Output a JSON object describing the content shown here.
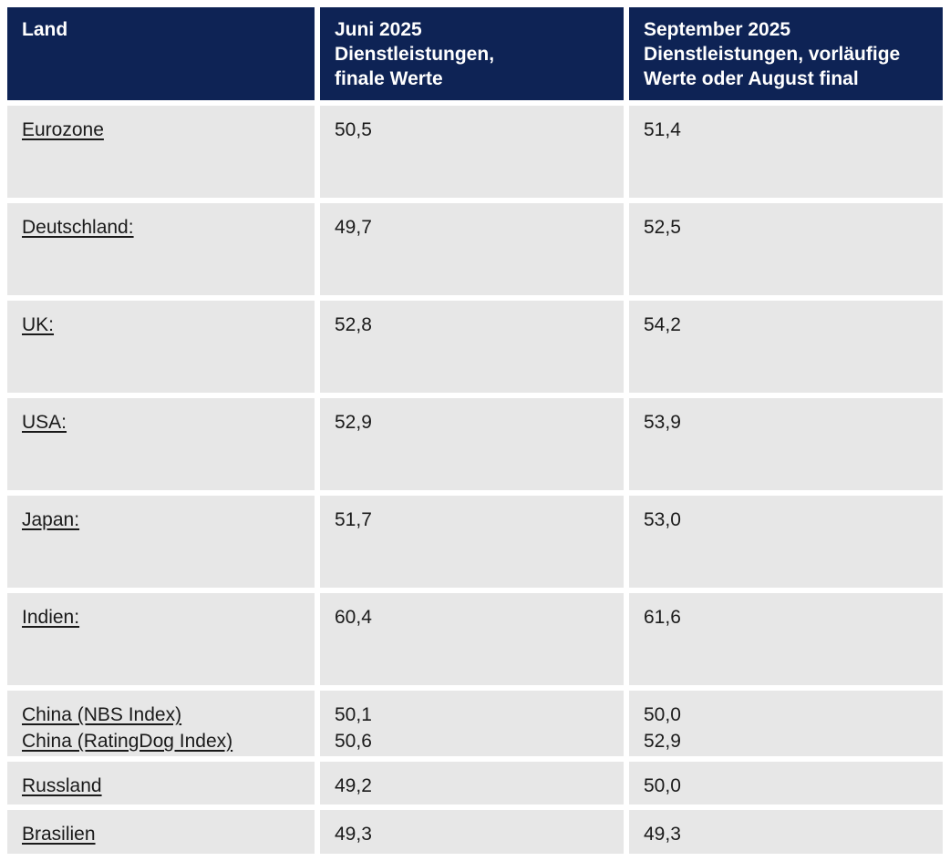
{
  "colors": {
    "header_bg": "#0e2355",
    "header_text": "#ffffff",
    "cell_bg": "#e7e7e7",
    "cell_text": "#1a1a1a",
    "page_bg": "#ffffff"
  },
  "chart_data": {
    "type": "table",
    "title": "PMI Dienstleistungen nach Land",
    "columns": [
      "Land",
      "Juni 2025 Dienstleistungen, finale Werte",
      "September 2025 Dienstleistungen, vorläufige Werte oder August final"
    ],
    "rows": [
      [
        "Eurozone",
        "50,5",
        "51,4"
      ],
      [
        "Deutschland:",
        "49,7",
        "52,5"
      ],
      [
        "UK:",
        "52,8",
        "54,2"
      ],
      [
        "USA:",
        "52,9",
        "53,9"
      ],
      [
        "Japan:",
        "51,7",
        "53,0"
      ],
      [
        "Indien:",
        "60,4",
        "61,6"
      ],
      [
        "China (NBS Index)",
        "50,1",
        "50,0"
      ],
      [
        "China (RatingDog Index)",
        "50,6",
        "52,9"
      ],
      [
        "Russland",
        "49,2",
        "50,0"
      ],
      [
        "Brasilien",
        "49,3",
        "49,3"
      ]
    ]
  },
  "table": {
    "header": {
      "col1": "Land",
      "col2": "Juni 2025\nDienstleistungen,\nfinale Werte",
      "col3": "September 2025\nDienstleistungen, vorläufige\nWerte oder August final"
    },
    "rows": [
      {
        "country": "Eurozone",
        "june": "50,5",
        "september": "51,4"
      },
      {
        "country": "Deutschland:",
        "june": "49,7",
        "september": "52,5"
      },
      {
        "country": "UK:",
        "june": "52,8",
        "september": "54,2"
      },
      {
        "country": "USA:",
        "june": "52,9",
        "september": "53,9"
      },
      {
        "country": "Japan:",
        "june": "51,7",
        "september": "53,0"
      },
      {
        "country": "Indien:",
        "june": "60,4",
        "september": "61,6"
      },
      {
        "country1": "China (NBS Index)",
        "country2": "China (RatingDog Index)",
        "june": "50,1\n50,6",
        "september": "50,0\n52,9"
      },
      {
        "country": "Russland",
        "june": "49,2",
        "september": "50,0"
      },
      {
        "country": "Brasilien",
        "june": "49,3",
        "september": "49,3"
      }
    ]
  }
}
